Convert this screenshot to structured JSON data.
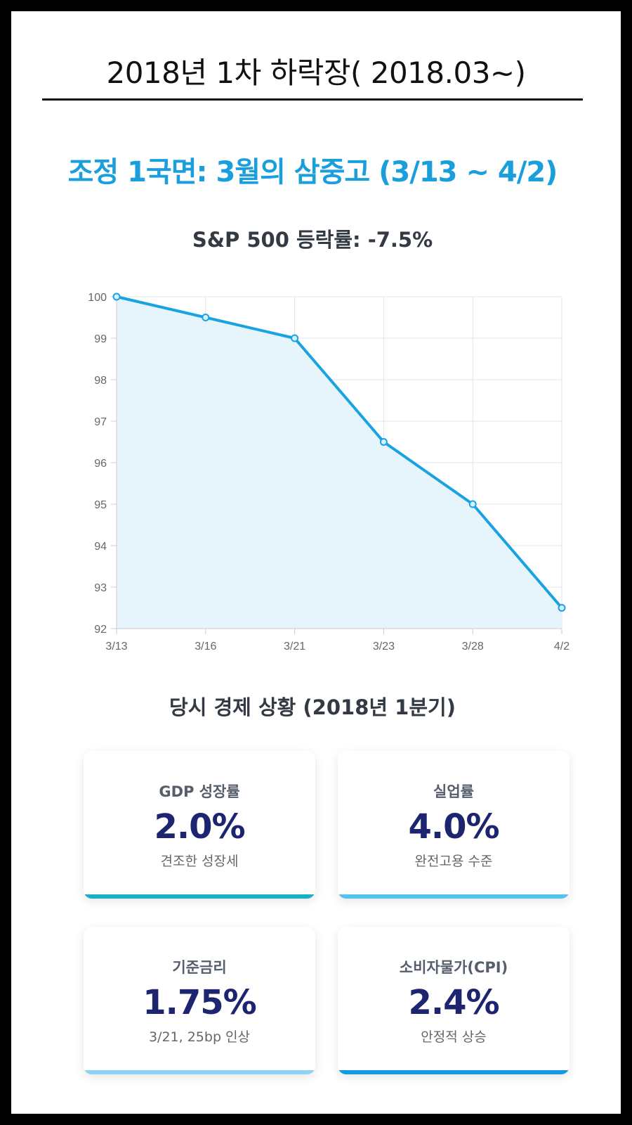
{
  "page": {
    "title": "2018년 1차 하락장( 2018.03~)",
    "section_heading": "조정 1국면: 3월의 삼중고 (3/13 ~ 4/2)",
    "economy_heading": "당시 경제 상황 (2018년 1분기)"
  },
  "colors": {
    "accent": "#1a9fdc",
    "line": "#1aa3e0",
    "fill": "#e3f4fc",
    "value": "#1e2570",
    "bar_teal": "#17b0c8",
    "bar_light": "#55c3ef",
    "bar_pale": "#8ed3f5",
    "bar_blue": "#1599e0"
  },
  "chart_data": {
    "type": "area",
    "title": "S&P 500 등락률: -7.5%",
    "categories": [
      "3/13",
      "3/16",
      "3/21",
      "3/23",
      "3/28",
      "4/2"
    ],
    "series": [
      {
        "name": "S&P 500",
        "values": [
          100,
          99.5,
          99,
          96.5,
          95,
          92.5
        ]
      }
    ],
    "ylim": [
      92,
      100
    ],
    "yticks": [
      100,
      99,
      98,
      97,
      96,
      95,
      94,
      93,
      92
    ],
    "xlabel": "",
    "ylabel": "",
    "grid": true
  },
  "cards": [
    {
      "label": "GDP 성장률",
      "value": "2.0%",
      "note": "견조한 성장세",
      "accent": "#17b0c8"
    },
    {
      "label": "실업률",
      "value": "4.0%",
      "note": "완전고용 수준",
      "accent": "#55c3ef"
    },
    {
      "label": "기준금리",
      "value": "1.75%",
      "note": "3/21, 25bp 인상",
      "accent": "#8ed3f5"
    },
    {
      "label": "소비자물가(CPI)",
      "value": "2.4%",
      "note": "안정적 상승",
      "accent": "#1599e0"
    }
  ]
}
